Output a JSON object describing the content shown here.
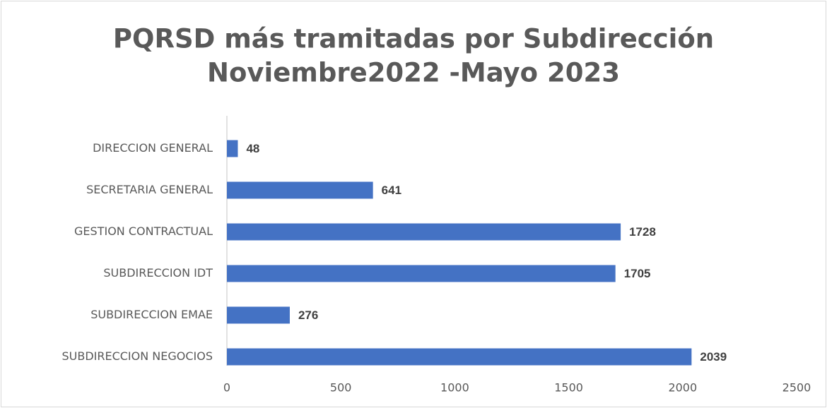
{
  "chart_data": {
    "type": "bar",
    "orientation": "horizontal",
    "title": [
      "PQRSD más tramitadas por Subdirección",
      "Noviembre2022 -Mayo 2023"
    ],
    "categories": [
      "DIRECCION GENERAL",
      "SECRETARIA GENERAL",
      "GESTION CONTRACTUAL",
      "SUBDIRECCION IDT",
      "SUBDIRECCION EMAE",
      "SUBDIRECCION NEGOCIOS"
    ],
    "values": [
      48,
      641,
      1728,
      1705,
      276,
      2039
    ],
    "color": "#4472c4",
    "xlim": [
      0,
      2500
    ],
    "xticks": [
      0,
      500,
      1000,
      1500,
      2000,
      2500
    ],
    "grid": false
  }
}
